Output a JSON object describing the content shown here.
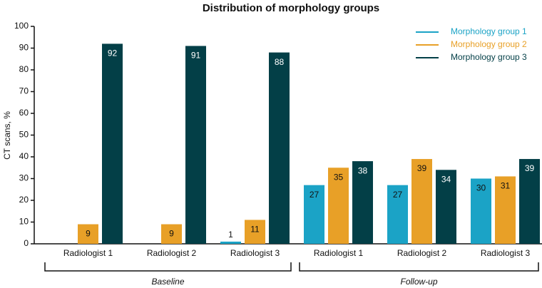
{
  "chart_data": {
    "type": "bar",
    "title": "Distribution of morphology groups",
    "y_label": "CT scans, %",
    "categories": [
      "Radiologist 1",
      "Radiologist 2",
      "Radiologist 3",
      "Radiologist 1",
      "Radiologist 2",
      "Radiologist 3"
    ],
    "category_groups": [
      "Baseline",
      "Follow-up"
    ],
    "series": [
      {
        "name": "Morphology group 1",
        "color": "#1ba3c6",
        "values": [
          null,
          null,
          1,
          27,
          27,
          30
        ]
      },
      {
        "name": "Morphology group 2",
        "color": "#e8a027",
        "values": [
          9,
          9,
          11,
          35,
          39,
          31
        ]
      },
      {
        "name": "Morphology group 3",
        "color": "#033f47",
        "values": [
          92,
          91,
          88,
          38,
          34,
          39
        ]
      }
    ],
    "ylim": [
      0,
      100
    ],
    "yticks": [
      0,
      10,
      20,
      30,
      40,
      50,
      60,
      70,
      80,
      90,
      100
    ],
    "legend": "upper right",
    "grid": false
  }
}
